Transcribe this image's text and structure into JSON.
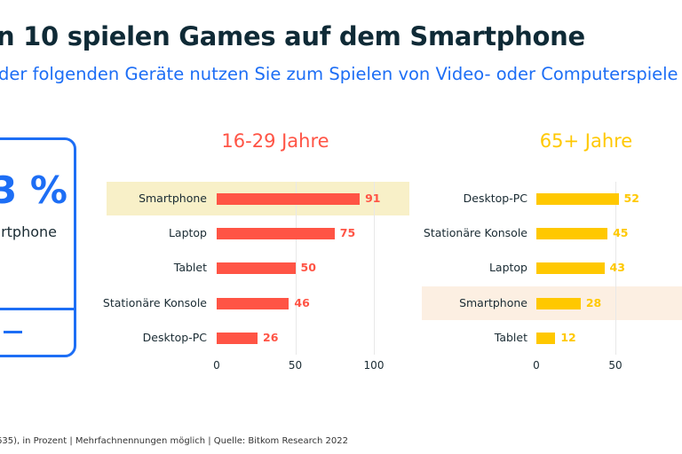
{
  "header": {
    "title": "n 10 spielen Games auf dem Smartphone",
    "subtitle": " der folgenden Geräte nutzen Sie zum Spielen von Video- oder Computerspiele"
  },
  "kpi": {
    "value": "3 %",
    "label": "rtphone"
  },
  "footer": "635), in Prozent | Mehrfachnennungen möglich | Quelle: Bitkom Research 2022",
  "colors": {
    "accent": "#1d6ef5",
    "young": "#ff5445",
    "old": "#ffc800",
    "highlight_young": "#f8f0c8",
    "highlight_old": "#fcefe2"
  },
  "chart_data": [
    {
      "type": "bar",
      "orientation": "horizontal",
      "title": "16-29 Jahre",
      "categories": [
        "Smartphone",
        "Laptop",
        "Tablet",
        "Stationäre Konsole",
        "Desktop-PC"
      ],
      "values": [
        91,
        75,
        50,
        46,
        26
      ],
      "highlight": "Smartphone",
      "xlim": [
        0,
        100
      ],
      "xticks": [
        "0",
        "50",
        "100"
      ],
      "grid": true
    },
    {
      "type": "bar",
      "orientation": "horizontal",
      "title": "65+ Jahre",
      "categories": [
        "Desktop-PC",
        "Stationäre Konsole",
        "Laptop",
        "Smartphone",
        "Tablet"
      ],
      "values": [
        52,
        45,
        43,
        28,
        12
      ],
      "highlight": "Smartphone",
      "xlim": [
        0,
        100
      ],
      "xticks": [
        "0",
        "50"
      ],
      "grid": true
    }
  ]
}
